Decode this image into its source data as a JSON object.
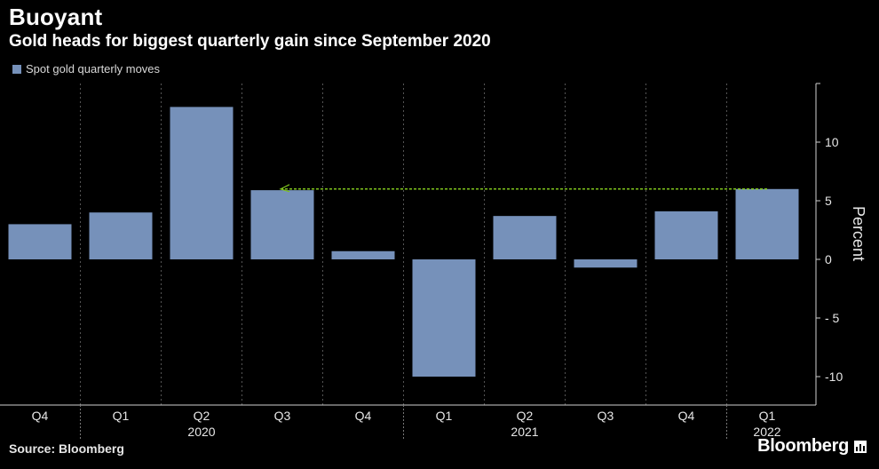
{
  "header": {
    "title": "Buoyant",
    "subtitle": "Gold heads for biggest quarterly gain since September 2020"
  },
  "footer": {
    "source": "Source: Bloomberg",
    "brand": "Bloomberg"
  },
  "colors": {
    "background": "#000000",
    "bar": "#7691ba",
    "reference_line": "#7fc41d",
    "grid": "#555555"
  },
  "chart_data": {
    "type": "bar",
    "categories": [
      "Q4",
      "Q1",
      "Q2",
      "Q3",
      "Q4",
      "Q1",
      "Q2",
      "Q3",
      "Q4",
      "Q1"
    ],
    "year_labels": [
      {
        "label": "2020",
        "category_index": 2
      },
      {
        "label": "2021",
        "category_index": 6
      },
      {
        "label": "2022",
        "category_index": 9
      }
    ],
    "series": [
      {
        "name": "Spot gold quarterly moves",
        "values": [
          3.0,
          4.0,
          13.0,
          5.9,
          0.7,
          -10.0,
          3.7,
          -0.7,
          4.1,
          6.0
        ]
      }
    ],
    "reference_line": {
      "from_index": 3,
      "to_index": 9,
      "value": 6.0
    },
    "ylabel": "Percent",
    "ylim": [
      -12.5,
      15
    ],
    "yticks": [
      10,
      5,
      0,
      -5,
      -10
    ],
    "ytick_labels": [
      "10",
      "5",
      "0",
      "- 5",
      "-10"
    ],
    "y_axis_position": "right",
    "grid": "vertical dashed",
    "legend_position": "top-left"
  }
}
